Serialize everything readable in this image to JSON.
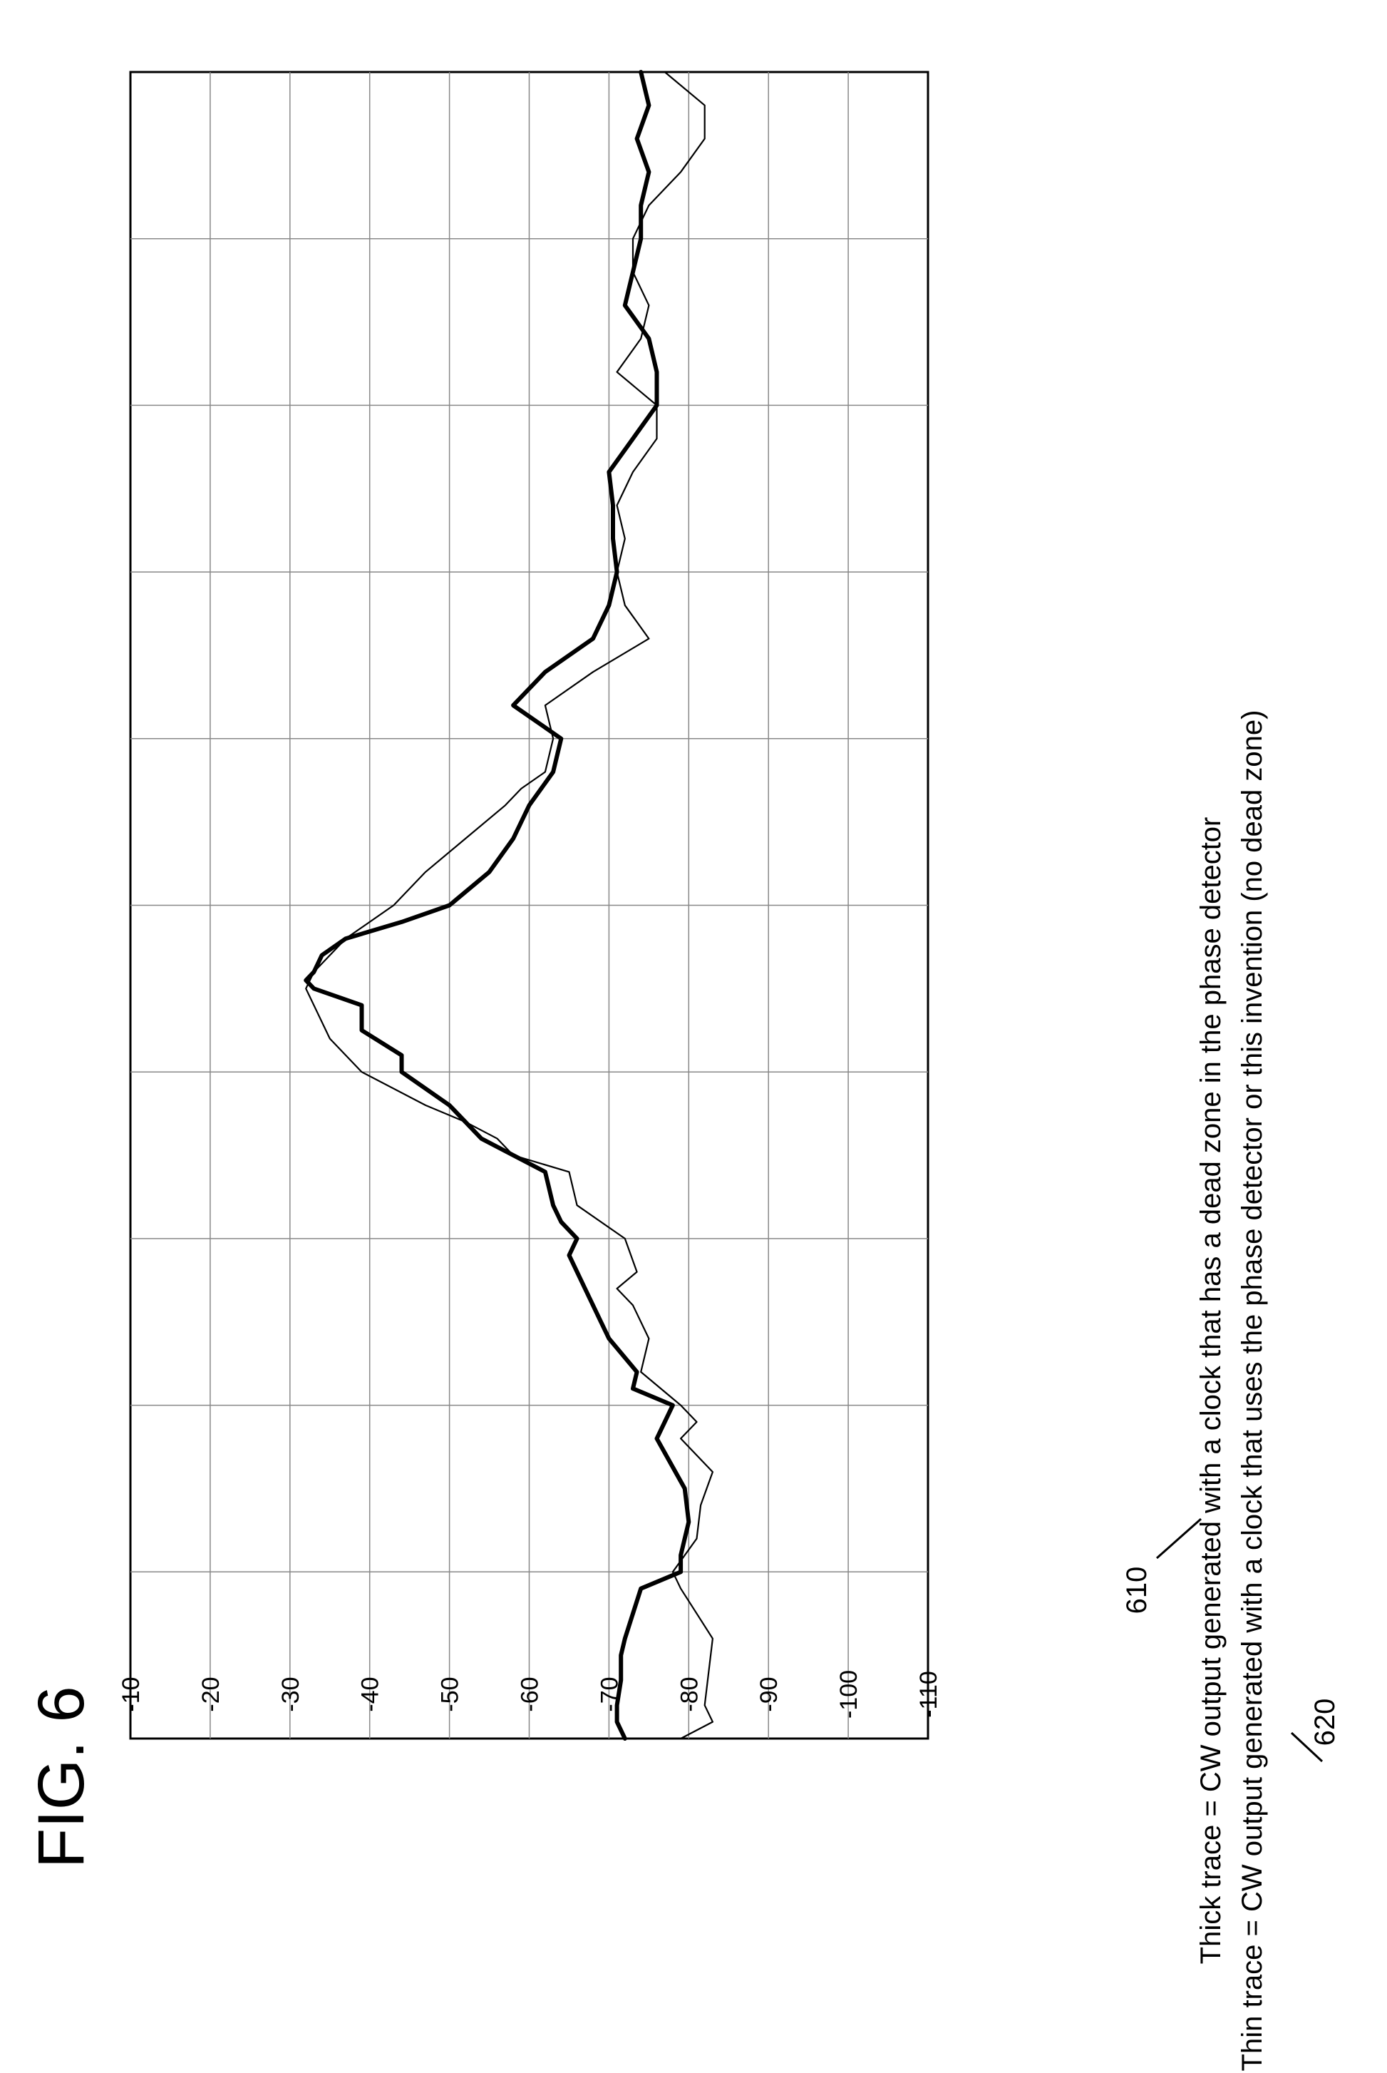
{
  "figure_label": "FIG. 6",
  "caption": {
    "thick_line": "Thick trace = CW output generated with a clock that has a dead zone in the phase detector",
    "thin_line": "Thin trace = CW output generated with a clock that uses the phase detector or this invention (no dead zone)"
  },
  "reference_numerals": {
    "thick": "610",
    "thin": "620"
  },
  "chart_data": {
    "type": "line",
    "orientation": "rotated 90 degrees counter-clockwise on the page",
    "title": "",
    "xlabel": "",
    "ylabel": "",
    "ylim": [
      -110,
      -10
    ],
    "yticks": [
      "-10",
      "-20",
      "-30",
      "-40",
      "-50",
      "-60",
      "-70",
      "-80",
      "-90",
      "-100",
      "-110"
    ],
    "ytick_values": [
      -10,
      -20,
      -30,
      -40,
      -50,
      -60,
      -70,
      -80,
      -90,
      -100,
      -110
    ],
    "xlim": [
      0,
      10
    ],
    "x_gridlines": 10,
    "grid": true,
    "series": [
      {
        "style": "thick",
        "x": [
          0,
          0.1,
          0.2,
          0.35,
          0.5,
          0.6,
          0.75,
          0.9,
          1.0,
          1.1,
          1.3,
          1.5,
          1.8,
          2.0,
          2.1,
          2.2,
          2.4,
          2.5,
          2.7,
          2.9,
          3.0,
          3.1,
          3.2,
          3.4,
          3.6,
          3.8,
          4.0,
          4.1,
          4.25,
          4.4,
          4.5,
          4.55,
          4.6,
          4.7,
          4.8,
          4.9,
          5.0,
          5.2,
          5.4,
          5.6,
          5.8,
          6.0,
          6.1,
          6.2,
          6.4,
          6.6,
          6.8,
          7.0,
          7.2,
          7.4,
          7.6,
          7.8,
          8.0,
          8.2,
          8.4,
          8.6,
          8.8,
          9.0,
          9.2,
          9.4,
          9.6,
          9.8,
          10.0
        ],
        "y": [
          -72,
          -71,
          -71,
          -71.5,
          -71.5,
          -72,
          -73,
          -74,
          -79,
          -79,
          -80,
          -79.5,
          -76,
          -78,
          -73,
          -73.5,
          -70,
          -69,
          -67,
          -65,
          -66,
          -64,
          -63,
          -62,
          -54,
          -50,
          -44,
          -44,
          -39,
          -39,
          -33,
          -32,
          -33,
          -34,
          -37,
          -44,
          -50,
          -55,
          -58,
          -60,
          -63,
          -64,
          -61,
          -58,
          -62,
          -68,
          -70,
          -71,
          -70.5,
          -70.5,
          -70,
          -73,
          -76,
          -76,
          -75,
          -72,
          -73,
          -74,
          -74,
          -75,
          -73.5,
          -75,
          -74
        ]
      },
      {
        "style": "thin",
        "x": [
          0,
          0.1,
          0.2,
          0.4,
          0.6,
          0.75,
          0.9,
          1.0,
          1.2,
          1.4,
          1.6,
          1.8,
          1.9,
          2.0,
          2.2,
          2.4,
          2.6,
          2.7,
          2.8,
          3.0,
          3.2,
          3.4,
          3.5,
          3.6,
          3.7,
          3.8,
          4.0,
          4.2,
          4.4,
          4.5,
          4.6,
          4.8,
          5.0,
          5.2,
          5.4,
          5.6,
          5.7,
          5.8,
          6.0,
          6.2,
          6.4,
          6.6,
          6.8,
          7.0,
          7.2,
          7.4,
          7.6,
          7.8,
          8.0,
          8.2,
          8.4,
          8.6,
          8.8,
          9.0,
          9.2,
          9.4,
          9.6,
          9.8,
          10.0
        ],
        "y": [
          -79,
          -83,
          -82,
          -82.5,
          -83,
          -81,
          -79,
          -78,
          -81,
          -81.5,
          -83,
          -79,
          -81,
          -79,
          -74,
          -75,
          -73,
          -71,
          -73.5,
          -72,
          -66,
          -65,
          -58,
          -56,
          -52,
          -47,
          -39,
          -35,
          -33,
          -32,
          -33,
          -37,
          -43,
          -47,
          -52,
          -57,
          -59,
          -62,
          -63,
          -62,
          -68,
          -75,
          -72,
          -71,
          -72,
          -71,
          -73,
          -76,
          -76,
          -71,
          -74,
          -75,
          -73,
          -73,
          -75,
          -79,
          -82,
          -82,
          -77
        ]
      }
    ]
  }
}
